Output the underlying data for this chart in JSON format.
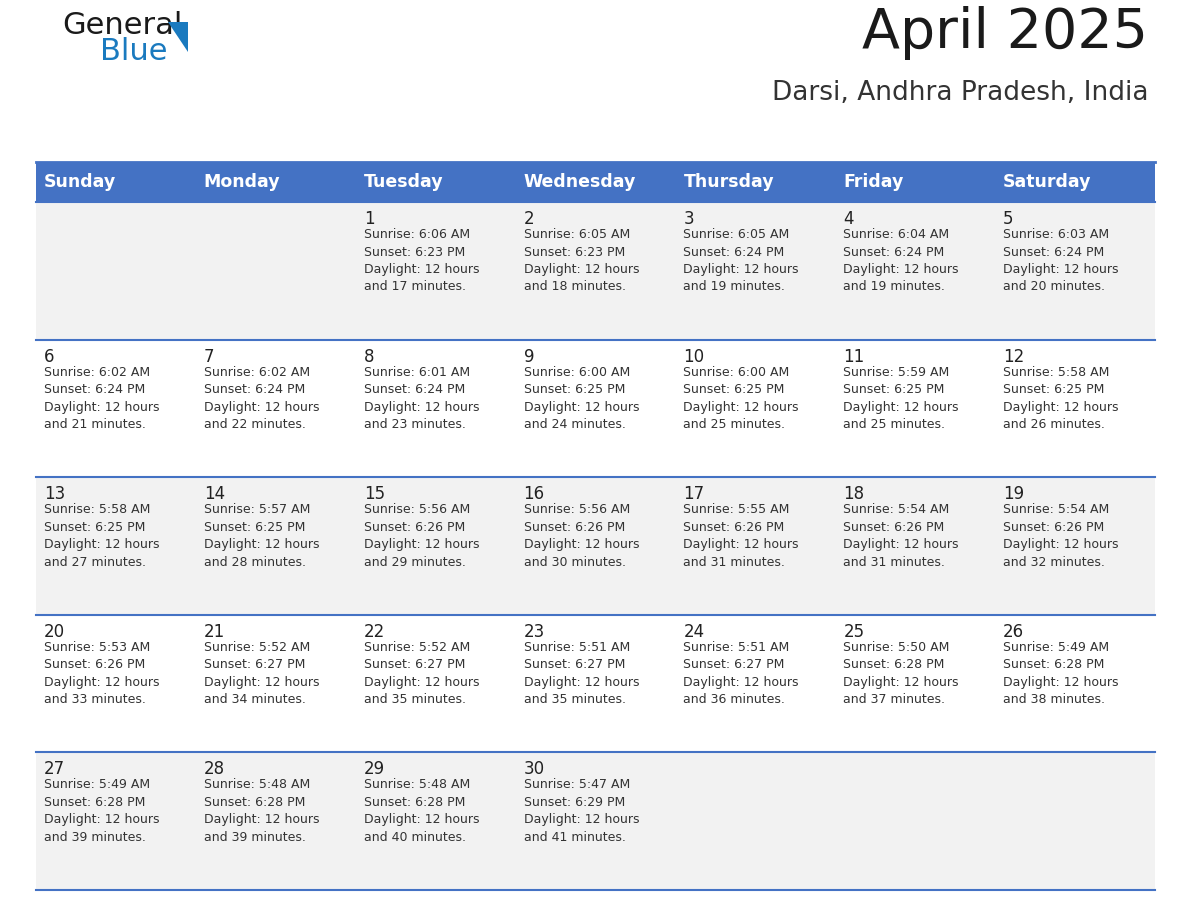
{
  "title": "April 2025",
  "subtitle": "Darsi, Andhra Pradesh, India",
  "header_bg": "#4472C4",
  "header_text_color": "#FFFFFF",
  "cell_bg_odd": "#F2F2F2",
  "cell_bg_even": "#FFFFFF",
  "grid_line_color": "#4472C4",
  "day_headers": [
    "Sunday",
    "Monday",
    "Tuesday",
    "Wednesday",
    "Thursday",
    "Friday",
    "Saturday"
  ],
  "weeks": [
    [
      {
        "day": "",
        "info": ""
      },
      {
        "day": "",
        "info": ""
      },
      {
        "day": "1",
        "info": "Sunrise: 6:06 AM\nSunset: 6:23 PM\nDaylight: 12 hours\nand 17 minutes."
      },
      {
        "day": "2",
        "info": "Sunrise: 6:05 AM\nSunset: 6:23 PM\nDaylight: 12 hours\nand 18 minutes."
      },
      {
        "day": "3",
        "info": "Sunrise: 6:05 AM\nSunset: 6:24 PM\nDaylight: 12 hours\nand 19 minutes."
      },
      {
        "day": "4",
        "info": "Sunrise: 6:04 AM\nSunset: 6:24 PM\nDaylight: 12 hours\nand 19 minutes."
      },
      {
        "day": "5",
        "info": "Sunrise: 6:03 AM\nSunset: 6:24 PM\nDaylight: 12 hours\nand 20 minutes."
      }
    ],
    [
      {
        "day": "6",
        "info": "Sunrise: 6:02 AM\nSunset: 6:24 PM\nDaylight: 12 hours\nand 21 minutes."
      },
      {
        "day": "7",
        "info": "Sunrise: 6:02 AM\nSunset: 6:24 PM\nDaylight: 12 hours\nand 22 minutes."
      },
      {
        "day": "8",
        "info": "Sunrise: 6:01 AM\nSunset: 6:24 PM\nDaylight: 12 hours\nand 23 minutes."
      },
      {
        "day": "9",
        "info": "Sunrise: 6:00 AM\nSunset: 6:25 PM\nDaylight: 12 hours\nand 24 minutes."
      },
      {
        "day": "10",
        "info": "Sunrise: 6:00 AM\nSunset: 6:25 PM\nDaylight: 12 hours\nand 25 minutes."
      },
      {
        "day": "11",
        "info": "Sunrise: 5:59 AM\nSunset: 6:25 PM\nDaylight: 12 hours\nand 25 minutes."
      },
      {
        "day": "12",
        "info": "Sunrise: 5:58 AM\nSunset: 6:25 PM\nDaylight: 12 hours\nand 26 minutes."
      }
    ],
    [
      {
        "day": "13",
        "info": "Sunrise: 5:58 AM\nSunset: 6:25 PM\nDaylight: 12 hours\nand 27 minutes."
      },
      {
        "day": "14",
        "info": "Sunrise: 5:57 AM\nSunset: 6:25 PM\nDaylight: 12 hours\nand 28 minutes."
      },
      {
        "day": "15",
        "info": "Sunrise: 5:56 AM\nSunset: 6:26 PM\nDaylight: 12 hours\nand 29 minutes."
      },
      {
        "day": "16",
        "info": "Sunrise: 5:56 AM\nSunset: 6:26 PM\nDaylight: 12 hours\nand 30 minutes."
      },
      {
        "day": "17",
        "info": "Sunrise: 5:55 AM\nSunset: 6:26 PM\nDaylight: 12 hours\nand 31 minutes."
      },
      {
        "day": "18",
        "info": "Sunrise: 5:54 AM\nSunset: 6:26 PM\nDaylight: 12 hours\nand 31 minutes."
      },
      {
        "day": "19",
        "info": "Sunrise: 5:54 AM\nSunset: 6:26 PM\nDaylight: 12 hours\nand 32 minutes."
      }
    ],
    [
      {
        "day": "20",
        "info": "Sunrise: 5:53 AM\nSunset: 6:26 PM\nDaylight: 12 hours\nand 33 minutes."
      },
      {
        "day": "21",
        "info": "Sunrise: 5:52 AM\nSunset: 6:27 PM\nDaylight: 12 hours\nand 34 minutes."
      },
      {
        "day": "22",
        "info": "Sunrise: 5:52 AM\nSunset: 6:27 PM\nDaylight: 12 hours\nand 35 minutes."
      },
      {
        "day": "23",
        "info": "Sunrise: 5:51 AM\nSunset: 6:27 PM\nDaylight: 12 hours\nand 35 minutes."
      },
      {
        "day": "24",
        "info": "Sunrise: 5:51 AM\nSunset: 6:27 PM\nDaylight: 12 hours\nand 36 minutes."
      },
      {
        "day": "25",
        "info": "Sunrise: 5:50 AM\nSunset: 6:28 PM\nDaylight: 12 hours\nand 37 minutes."
      },
      {
        "day": "26",
        "info": "Sunrise: 5:49 AM\nSunset: 6:28 PM\nDaylight: 12 hours\nand 38 minutes."
      }
    ],
    [
      {
        "day": "27",
        "info": "Sunrise: 5:49 AM\nSunset: 6:28 PM\nDaylight: 12 hours\nand 39 minutes."
      },
      {
        "day": "28",
        "info": "Sunrise: 5:48 AM\nSunset: 6:28 PM\nDaylight: 12 hours\nand 39 minutes."
      },
      {
        "day": "29",
        "info": "Sunrise: 5:48 AM\nSunset: 6:28 PM\nDaylight: 12 hours\nand 40 minutes."
      },
      {
        "day": "30",
        "info": "Sunrise: 5:47 AM\nSunset: 6:29 PM\nDaylight: 12 hours\nand 41 minutes."
      },
      {
        "day": "",
        "info": ""
      },
      {
        "day": "",
        "info": ""
      },
      {
        "day": "",
        "info": ""
      }
    ]
  ],
  "logo_general_color": "#1a1a1a",
  "logo_blue_color": "#1a7abf",
  "logo_triangle_color": "#1a7abf",
  "title_color": "#1a1a1a",
  "subtitle_color": "#333333"
}
